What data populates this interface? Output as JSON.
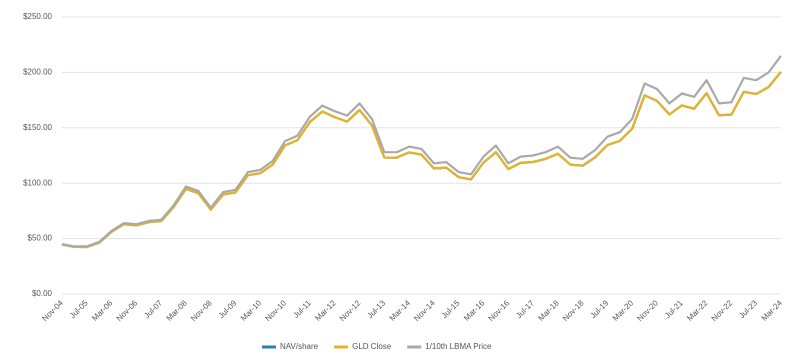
{
  "chart_data": {
    "type": "line",
    "categories": [
      "Nov-04",
      null,
      "Jul-05",
      null,
      "Mar-06",
      null,
      "Nov-06",
      null,
      "Jul-07",
      null,
      "Mar-08",
      null,
      "Nov-08",
      null,
      "Jul-09",
      null,
      "Mar-10",
      null,
      "Nov-10",
      null,
      "Jul-11",
      null,
      "Mar-12",
      null,
      "Nov-12",
      null,
      "Jul-13",
      null,
      "Mar-14",
      null,
      "Nov-14",
      null,
      "Jul-15",
      null,
      "Mar-16",
      null,
      "Nov-16",
      null,
      "Jul-17",
      null,
      "Mar-18",
      null,
      "Nov-18",
      null,
      "Jul-19",
      null,
      "Mar-20",
      null,
      "Nov-20",
      null,
      "Jul-21",
      null,
      "Mar-22",
      null,
      "Nov-22",
      null,
      "Jul-23",
      null,
      "Mar-24"
    ],
    "series": [
      {
        "name": "NAV/share",
        "color": "#2a7fb0",
        "values": [
          44.6,
          42.5,
          42.4,
          46.3,
          56.1,
          63,
          61.9,
          64.8,
          65.7,
          78.4,
          94.9,
          91,
          76.2,
          89.8,
          91.7,
          107.2,
          109,
          116.8,
          134.1,
          138.9,
          155.2,
          164.7,
          159.7,
          155.6,
          166,
          152.3,
          123.2,
          123.1,
          127.8,
          125.8,
          113.3,
          114.1,
          105.4,
          103.4,
          118.6,
          128,
          112.7,
          118.3,
          119.1,
          121.9,
          126.5,
          116.8,
          115.8,
          123.3,
          134.5,
          138.2,
          149.2,
          179.2,
          174.3,
          162,
          170.2,
          167.2,
          181.2,
          161.3,
          161.9,
          182.5,
          180.4,
          186.8,
          200.5
        ]
      },
      {
        "name": "GLD Close",
        "color": "#e8b322",
        "values": [
          44.6,
          42.5,
          42.4,
          46.3,
          56.1,
          63,
          61.9,
          64.8,
          65.7,
          78.4,
          94.9,
          91,
          76.2,
          89.8,
          91.7,
          107.2,
          109,
          116.8,
          134.1,
          138.9,
          155.2,
          164.7,
          159.7,
          155.6,
          166,
          152.3,
          123.2,
          123.1,
          127.8,
          125.8,
          113.3,
          114.1,
          105.4,
          103.4,
          118.6,
          128,
          112.7,
          118.3,
          119.1,
          121.9,
          126.5,
          116.8,
          115.8,
          123.3,
          134.5,
          138.2,
          149.2,
          179.2,
          174.3,
          162,
          170.2,
          167.2,
          181.2,
          161.3,
          161.9,
          182.5,
          180.4,
          186.8,
          200.5
        ]
      },
      {
        "name": "1/10th LBMA Price",
        "color": "#a9a9a9",
        "values": [
          45,
          43,
          43,
          47,
          57,
          64,
          63,
          66,
          67,
          80,
          97,
          93,
          78,
          92,
          94,
          110,
          112,
          120,
          138,
          143,
          160,
          170,
          165,
          161,
          172,
          158,
          128,
          128,
          133,
          131,
          118,
          119,
          110,
          108,
          124,
          134,
          118,
          124,
          125,
          128,
          133,
          123,
          122,
          130,
          142,
          146,
          158,
          190,
          185,
          172,
          181,
          178,
          193,
          172,
          173,
          195,
          193,
          200,
          215
        ]
      }
    ],
    "ylim": [
      0,
      250
    ],
    "yticks": [
      {
        "value": 0,
        "label": "$0.00"
      },
      {
        "value": 50,
        "label": "$50.00"
      },
      {
        "value": 100,
        "label": "$100.00"
      },
      {
        "value": 150,
        "label": "$150.00"
      },
      {
        "value": 200,
        "label": "$200.00"
      },
      {
        "value": 250,
        "label": "$250.00"
      }
    ],
    "grid": true
  }
}
